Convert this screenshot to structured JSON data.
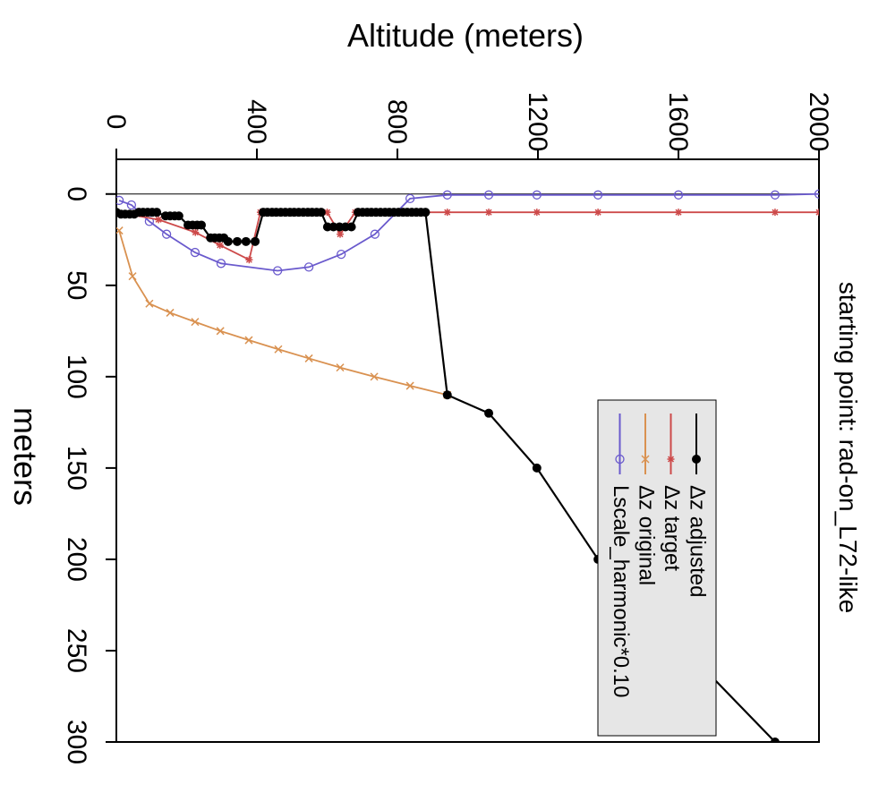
{
  "chart_data": {
    "type": "line",
    "title": "starting point: rad-on_L72-like",
    "x_label": "Altitude (meters)",
    "y_label": "meters",
    "xlim": [
      0,
      2000
    ],
    "xticks": [
      0,
      400,
      800,
      1200,
      1600,
      2000
    ],
    "ylim": [
      -19,
      300
    ],
    "yticks": [
      0,
      50,
      100,
      150,
      200,
      250,
      300
    ],
    "hline": 0,
    "legend": "bottomright",
    "series": [
      {
        "name": "Δz adjusted",
        "color": "#000000",
        "marker": "filled-circle",
        "x": [
          0,
          13,
          25,
          38,
          51,
          64,
          76,
          89,
          102,
          115,
          140,
          153,
          166,
          178,
          204,
          217,
          230,
          242,
          268,
          280,
          293,
          306,
          318,
          344,
          369,
          395,
          418,
          430,
          443,
          455,
          468,
          481,
          494,
          506,
          519,
          532,
          545,
          557,
          570,
          583,
          601,
          618,
          635,
          652,
          669,
          688,
          701,
          714,
          726,
          739,
          752,
          765,
          777,
          790,
          803,
          816,
          828,
          841,
          854,
          867,
          880,
          942,
          1060,
          1197,
          1371,
          1875
        ],
        "values": [
          10,
          11,
          11,
          11,
          11,
          10,
          10,
          10,
          10,
          10,
          12,
          12,
          12,
          12,
          17,
          17,
          17,
          17,
          24,
          24,
          24,
          24,
          26,
          26,
          26,
          26,
          10,
          10,
          10,
          10,
          10,
          10,
          10,
          10,
          10,
          10,
          10,
          10,
          10,
          10,
          18,
          18,
          18,
          18,
          18,
          10,
          10,
          10,
          10,
          10,
          10,
          10,
          10,
          10,
          10,
          10,
          10,
          10,
          10,
          10,
          10,
          110,
          120,
          150,
          200,
          300
        ]
      },
      {
        "name": "Δz target",
        "color": "#cd4a4a",
        "marker": "star",
        "x": [
          0,
          30,
          120,
          225,
          295,
          378,
          410,
          600,
          637,
          680,
          880,
          942,
          1060,
          1197,
          1371,
          1600,
          1875,
          2000
        ],
        "values": [
          10,
          11,
          14,
          21,
          28,
          36,
          10,
          10,
          22,
          10,
          10,
          10,
          10,
          10,
          10,
          10,
          10,
          10
        ]
      },
      {
        "name": "Δz original",
        "color": "#d99150",
        "marker": "x",
        "x": [
          8,
          46,
          94,
          153,
          224,
          296,
          377,
          461,
          548,
          637,
          734,
          836,
          942
        ],
        "values": [
          20,
          45,
          60,
          65,
          70,
          75,
          80,
          85,
          90,
          95,
          100,
          105,
          110
        ]
      },
      {
        "name": "Lscale_harmonic*0.10",
        "color": "#6a5acd",
        "marker": "open-circle",
        "x": [
          8,
          43,
          94,
          143,
          224,
          298,
          459,
          548,
          640,
          736,
          836,
          942,
          1060,
          1197,
          1371,
          1600,
          1875,
          2000
        ],
        "values": [
          3.5,
          6,
          15,
          22,
          32,
          38,
          42,
          40,
          33,
          22,
          2.5,
          0.5,
          0.5,
          0.5,
          0.5,
          0.5,
          0.5,
          0
        ]
      }
    ]
  }
}
